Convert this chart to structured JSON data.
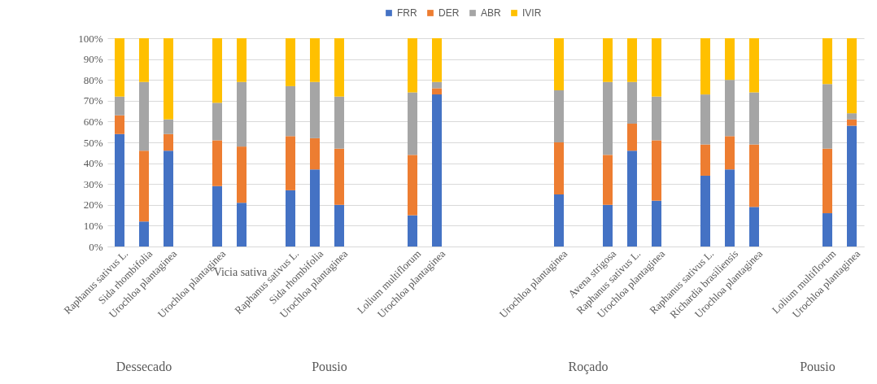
{
  "chart_data": {
    "type": "bar",
    "stacked": true,
    "categories": [
      "Raphanus sativus L.",
      "Sida rhombifolia",
      "Urochloa plantaginea",
      null,
      "Urochloa plantaginea",
      null,
      null,
      "Raphanus sativus L.",
      "Sida rhombifolia",
      "Urochloa plantaginea",
      null,
      null,
      "Lolium multiflorum",
      "Urochloa plantaginea",
      null,
      null,
      null,
      null,
      "Urochloa plantaginea",
      null,
      "Avena strigosa",
      "Raphanus sativus L.",
      "Urochloa plantaginea",
      null,
      "Raphanus sativus L.",
      "Richardia brasiliensis",
      "Urochloa plantaginea",
      null,
      null,
      "Lolium multiflorum",
      "Urochloa plantaginea"
    ],
    "series": [
      {
        "name": "FRR",
        "color": "#4472c4",
        "values": [
          54,
          12,
          46,
          null,
          29,
          21,
          null,
          27,
          37,
          20,
          null,
          null,
          15,
          73,
          null,
          null,
          null,
          null,
          25,
          null,
          20,
          46,
          22,
          null,
          34,
          37,
          19,
          null,
          null,
          16,
          58
        ]
      },
      {
        "name": "DER",
        "color": "#ed7d31",
        "values": [
          9,
          34,
          8,
          null,
          22,
          27,
          null,
          26,
          15,
          27,
          null,
          null,
          29,
          3,
          null,
          null,
          null,
          null,
          25,
          null,
          24,
          13,
          29,
          null,
          15,
          16,
          30,
          null,
          null,
          31,
          3
        ]
      },
      {
        "name": "ABR",
        "color": "#a5a5a5",
        "values": [
          9,
          33,
          7,
          null,
          18,
          31,
          null,
          24,
          27,
          25,
          null,
          null,
          30,
          3,
          null,
          null,
          null,
          null,
          25,
          null,
          35,
          20,
          21,
          null,
          24,
          27,
          25,
          null,
          null,
          31,
          3
        ]
      },
      {
        "name": "IVIR",
        "color": "#ffc000",
        "values": [
          28,
          21,
          39,
          null,
          31,
          21,
          null,
          23,
          21,
          28,
          null,
          null,
          26,
          21,
          null,
          null,
          null,
          null,
          25,
          null,
          21,
          21,
          28,
          null,
          27,
          20,
          26,
          null,
          null,
          22,
          36
        ]
      }
    ],
    "ylim": [
      0,
      100
    ],
    "yticks": [
      {
        "value": 0,
        "label": "0%"
      },
      {
        "value": 10,
        "label": "10%"
      },
      {
        "value": 20,
        "label": "20%"
      },
      {
        "value": 30,
        "label": "30%"
      },
      {
        "value": 40,
        "label": "40%"
      },
      {
        "value": 50,
        "label": "50%"
      },
      {
        "value": 60,
        "label": "60%"
      },
      {
        "value": 70,
        "label": "70%"
      },
      {
        "value": 80,
        "label": "80%"
      },
      {
        "value": 90,
        "label": "90%"
      },
      {
        "value": 100,
        "label": "100%"
      }
    ],
    "grid": "y",
    "legend": "top",
    "annotations": [
      "Vicia sativa",
      "Dessecado",
      "Pousio",
      "Roçado",
      "Pousio"
    ]
  }
}
